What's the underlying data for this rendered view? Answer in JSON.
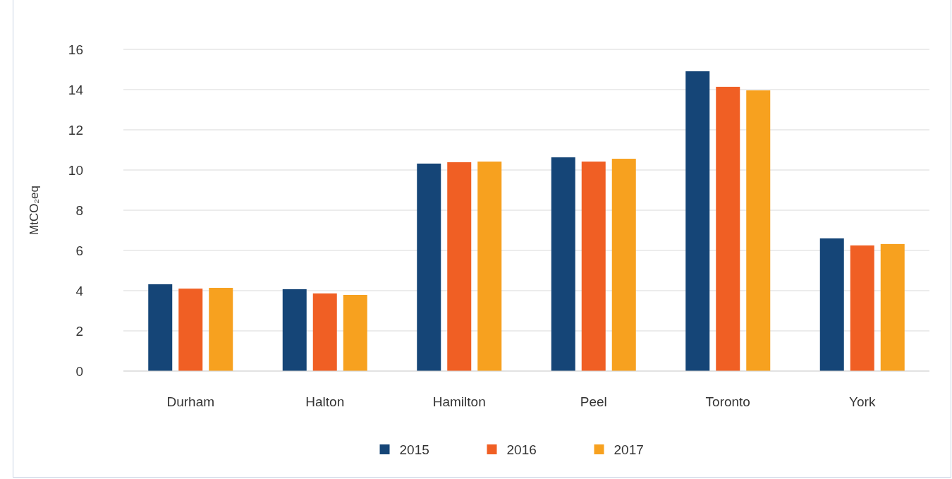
{
  "chart_data": {
    "type": "bar",
    "ylabel": "MtCO₂eq",
    "categories": [
      "Durham",
      "Halton",
      "Hamilton",
      "Peel",
      "Toronto",
      "York"
    ],
    "series": [
      {
        "name": "2015",
        "color": "#154577",
        "values": [
          4.32,
          4.07,
          10.32,
          10.63,
          14.91,
          6.6
        ]
      },
      {
        "name": "2016",
        "color": "#f05f24",
        "values": [
          4.1,
          3.86,
          10.39,
          10.42,
          14.14,
          6.25
        ]
      },
      {
        "name": "2017",
        "color": "#f7a11f",
        "values": [
          4.14,
          3.79,
          10.42,
          10.56,
          13.96,
          6.32
        ]
      }
    ],
    "ylim": [
      0,
      16
    ],
    "yticks": [
      0,
      2,
      4,
      6,
      8,
      10,
      12,
      14,
      16
    ],
    "grid": "y",
    "legend": "bottom"
  }
}
